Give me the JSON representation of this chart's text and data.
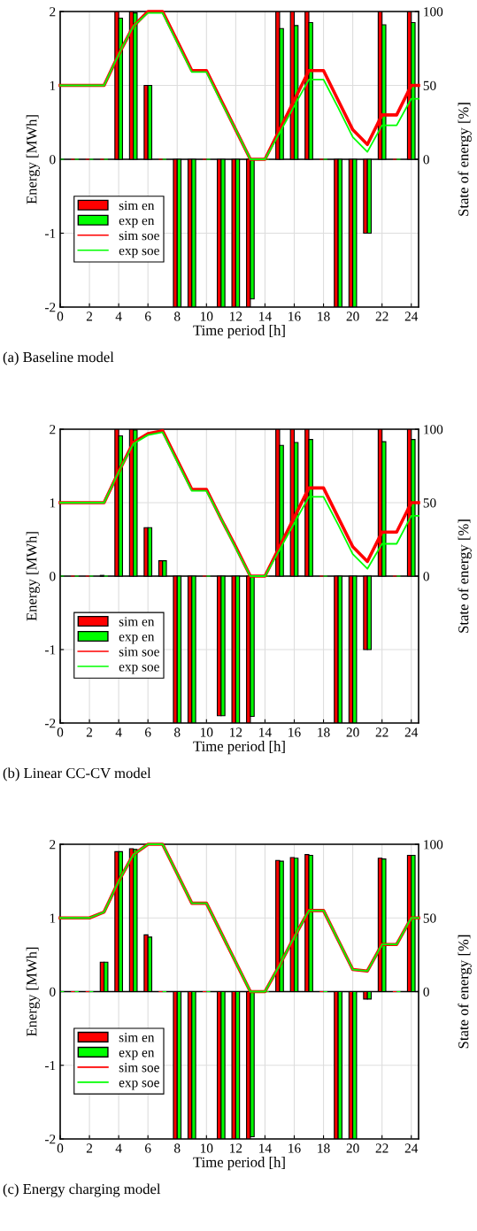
{
  "chart_data": [
    {
      "type": "bar",
      "title": "(a) Baseline model",
      "xlabel": "Time period [h]",
      "ylabel": "Energy [MWh]",
      "y2label": "State of energy [%]",
      "x": [
        0,
        1,
        2,
        3,
        4,
        5,
        6,
        7,
        8,
        9,
        10,
        11,
        12,
        13,
        14,
        15,
        16,
        17,
        18,
        19,
        20,
        21,
        22,
        23,
        24
      ],
      "xlim": [
        0,
        24.5
      ],
      "xticks": [
        0,
        2,
        4,
        6,
        8,
        10,
        12,
        14,
        16,
        18,
        20,
        22,
        24
      ],
      "ylim": [
        -2,
        2
      ],
      "yticks": [
        -2,
        -1,
        0,
        1,
        2
      ],
      "y2lim": [
        -100,
        100
      ],
      "y2ticks": [
        0,
        50,
        100
      ],
      "grid": true,
      "legend": "bottom left",
      "series": [
        {
          "name": "sim en",
          "axis": "y",
          "color": "#ff0000",
          "values": [
            0,
            0,
            0,
            0,
            2,
            2,
            1,
            0,
            -2,
            -2,
            0,
            -2,
            -2,
            -2,
            0,
            2,
            2,
            2,
            0,
            -2,
            -2,
            -1,
            2,
            0,
            2
          ]
        },
        {
          "name": "exp en",
          "axis": "y",
          "color": "#00ff00",
          "values": [
            0,
            0,
            0,
            0,
            1.91,
            1.98,
            1,
            0,
            -2,
            -2,
            0,
            -2,
            -2,
            -1.89,
            0,
            1.77,
            1.81,
            1.85,
            0,
            -2,
            -2,
            -1,
            1.82,
            0,
            1.85
          ]
        },
        {
          "name": "sim soe",
          "type": "line",
          "axis": "y2",
          "color": "#ff0000",
          "x": [
            0,
            1,
            2,
            3,
            4,
            5,
            6,
            7,
            8,
            9,
            10,
            11,
            12,
            13,
            14,
            15,
            16,
            17,
            18,
            19,
            20,
            21,
            22,
            23,
            24,
            24.5
          ],
          "values": [
            50,
            50,
            50,
            50,
            71,
            90,
            100,
            100,
            80,
            60,
            60,
            40,
            20,
            0,
            0,
            20,
            40,
            60,
            60,
            40,
            20,
            10,
            30,
            30,
            50,
            50
          ]
        },
        {
          "name": "exp soe",
          "type": "line",
          "axis": "y2",
          "color": "#00ff00",
          "x": [
            0,
            1,
            2,
            3,
            4,
            5,
            6,
            7,
            8,
            9,
            10,
            11,
            12,
            13,
            14,
            15,
            16,
            17,
            18,
            19,
            20,
            21,
            22,
            23,
            24,
            24.5
          ],
          "values": [
            50,
            50,
            50,
            50,
            71,
            90,
            99,
            99,
            79,
            59,
            59,
            39,
            20,
            0,
            0,
            18,
            36,
            54,
            54,
            35,
            15,
            5,
            23,
            23,
            41,
            41
          ]
        }
      ]
    },
    {
      "type": "bar",
      "title": "(b) Linear CC-CV model",
      "xlabel": "Time period [h]",
      "ylabel": "Energy [MWh]",
      "y2label": "State of energy [%]",
      "x": [
        0,
        1,
        2,
        3,
        4,
        5,
        6,
        7,
        8,
        9,
        10,
        11,
        12,
        13,
        14,
        15,
        16,
        17,
        18,
        19,
        20,
        21,
        22,
        23,
        24
      ],
      "xlim": [
        0,
        24.5
      ],
      "xticks": [
        0,
        2,
        4,
        6,
        8,
        10,
        12,
        14,
        16,
        18,
        20,
        22,
        24
      ],
      "ylim": [
        -2,
        2
      ],
      "yticks": [
        -2,
        -1,
        0,
        1,
        2
      ],
      "y2lim": [
        -100,
        100
      ],
      "y2ticks": [
        0,
        50,
        100
      ],
      "grid": true,
      "legend": "bottom left",
      "series": [
        {
          "name": "sim en",
          "axis": "y",
          "color": "#ff0000",
          "values": [
            0,
            0,
            0,
            0.01,
            2,
            2,
            0.66,
            0.21,
            -2,
            -2,
            0,
            -1.9,
            -2,
            -2,
            0,
            2,
            2,
            2,
            0,
            -2,
            -2,
            -1,
            2,
            0,
            2
          ]
        },
        {
          "name": "exp en",
          "axis": "y",
          "color": "#00ff00",
          "values": [
            0,
            0,
            0,
            0,
            1.91,
            1.99,
            0.66,
            0.21,
            -2,
            -2,
            0,
            -1.9,
            -2,
            -1.91,
            0,
            1.78,
            1.82,
            1.86,
            0,
            -2,
            -2,
            -1,
            1.83,
            0,
            1.86
          ]
        },
        {
          "name": "sim soe",
          "type": "line",
          "axis": "y2",
          "color": "#ff0000",
          "x": [
            0,
            1,
            2,
            3,
            4,
            5,
            6,
            7,
            8,
            9,
            10,
            11,
            12,
            13,
            14,
            15,
            16,
            17,
            18,
            19,
            20,
            21,
            22,
            23,
            24,
            24.5
          ],
          "values": [
            50,
            50,
            50,
            50,
            71,
            91,
            97,
            99,
            79,
            59,
            59,
            39,
            20,
            0,
            0,
            20,
            40,
            60,
            60,
            40,
            20,
            10,
            30,
            30,
            50,
            50
          ]
        },
        {
          "name": "exp soe",
          "type": "line",
          "axis": "y2",
          "color": "#00ff00",
          "x": [
            0,
            1,
            2,
            3,
            4,
            5,
            6,
            7,
            8,
            9,
            10,
            11,
            12,
            13,
            14,
            15,
            16,
            17,
            18,
            19,
            20,
            21,
            22,
            23,
            24,
            24.5
          ],
          "values": [
            50,
            50,
            50,
            50,
            71,
            90,
            96,
            98,
            78,
            58,
            58,
            39,
            19,
            0,
            0,
            18,
            36,
            54,
            54,
            35,
            15,
            5,
            22,
            22,
            41,
            41
          ]
        }
      ]
    },
    {
      "type": "bar",
      "title": "(c) Energy charging model",
      "xlabel": "Time period [h]",
      "ylabel": "Energy [MWh]",
      "y2label": "State of energy [%]",
      "x": [
        0,
        1,
        2,
        3,
        4,
        5,
        6,
        7,
        8,
        9,
        10,
        11,
        12,
        13,
        14,
        15,
        16,
        17,
        18,
        19,
        20,
        21,
        22,
        23,
        24
      ],
      "xlim": [
        0,
        24.5
      ],
      "xticks": [
        0,
        2,
        4,
        6,
        8,
        10,
        12,
        14,
        16,
        18,
        20,
        22,
        24
      ],
      "ylim": [
        -2,
        2
      ],
      "yticks": [
        -2,
        -1,
        0,
        1,
        2
      ],
      "y2lim": [
        -100,
        100
      ],
      "y2ticks": [
        0,
        50,
        100
      ],
      "grid": true,
      "legend": "bottom left",
      "series": [
        {
          "name": "sim en",
          "axis": "y",
          "color": "#ff0000",
          "values": [
            0,
            0,
            0,
            0.4,
            1.9,
            1.94,
            0.77,
            0,
            -2,
            -2,
            0,
            -2,
            -2,
            -2,
            0,
            1.78,
            1.82,
            1.86,
            0,
            -2,
            -2,
            -0.1,
            1.81,
            0,
            1.85
          ]
        },
        {
          "name": "exp en",
          "axis": "y",
          "color": "#00ff00",
          "values": [
            0,
            0,
            0,
            0.4,
            1.9,
            1.93,
            0.74,
            0,
            -2,
            -2,
            0,
            -2,
            -2,
            -1.97,
            0,
            1.77,
            1.81,
            1.85,
            0,
            -2,
            -2,
            -0.1,
            1.8,
            0,
            1.85
          ]
        },
        {
          "name": "sim soe",
          "type": "line",
          "axis": "y2",
          "color": "#ff0000",
          "x": [
            0,
            1,
            2,
            3,
            4,
            5,
            6,
            7,
            8,
            9,
            10,
            11,
            12,
            13,
            14,
            15,
            16,
            17,
            18,
            19,
            20,
            21,
            22,
            23,
            24,
            24.5
          ],
          "values": [
            50,
            50,
            50,
            54,
            75,
            93,
            100,
            100,
            80,
            60,
            60,
            40,
            20,
            0,
            0,
            18,
            37,
            55,
            55,
            35,
            15,
            14,
            32,
            32,
            50,
            50
          ]
        },
        {
          "name": "exp soe",
          "type": "line",
          "axis": "y2",
          "color": "#00ff00",
          "x": [
            0,
            1,
            2,
            3,
            4,
            5,
            6,
            7,
            8,
            9,
            10,
            11,
            12,
            13,
            14,
            15,
            16,
            17,
            18,
            19,
            20,
            21,
            22,
            23,
            24,
            24.5
          ],
          "values": [
            50,
            50,
            50,
            54,
            75,
            93,
            100,
            100,
            80,
            60,
            60,
            40,
            20,
            0,
            0,
            18,
            37,
            55,
            55,
            35,
            15,
            14,
            32,
            32,
            50,
            50
          ]
        }
      ]
    }
  ]
}
